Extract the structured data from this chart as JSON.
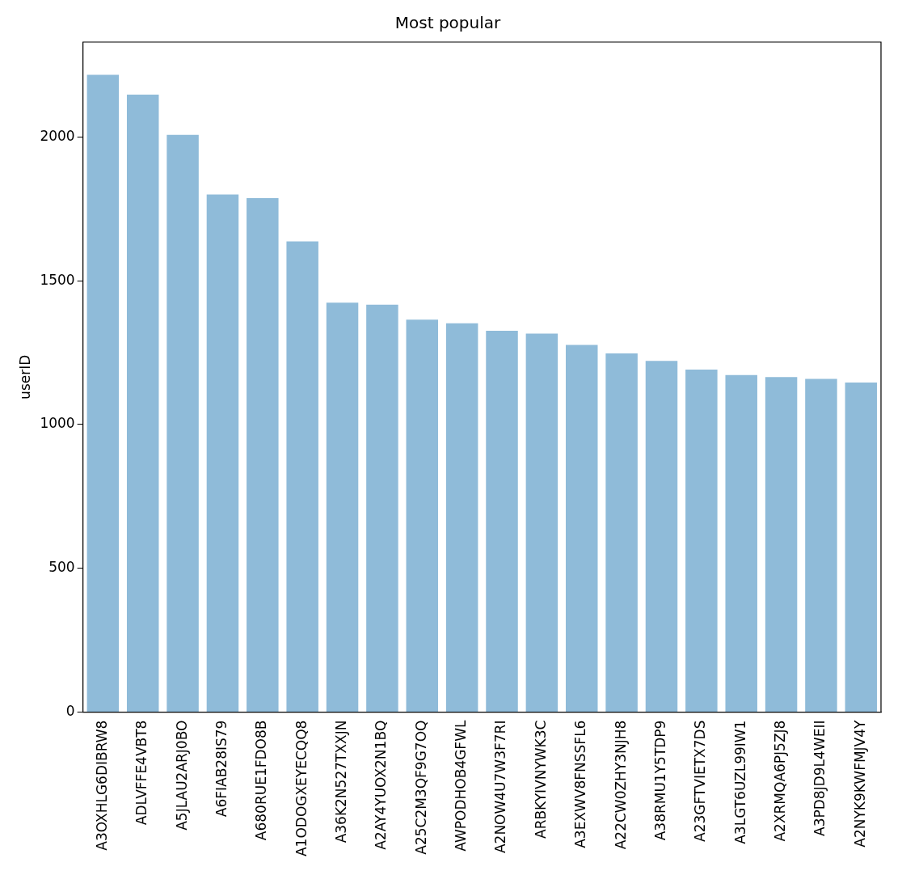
{
  "chart_data": {
    "type": "bar",
    "title": "Most popular",
    "ylabel": "userID",
    "categories": [
      "A3OXHLG6DIBRW8",
      "ADLVFFE4VBT8",
      "A5JLAU2ARJ0BO",
      "A6FIAB28IS79",
      "A680RUE1FDO8B",
      "A1ODOGXEYECQQ8",
      "A36K2N527TXXJN",
      "A2AY4YUOX2N1BQ",
      "A25C2M3QF9G7OQ",
      "AWPODHOB4GFWL",
      "A2NOW4U7W3F7RI",
      "ARBKYIVNYWK3C",
      "A3EXWV8FNSSFL6",
      "A22CW0ZHY3NJH8",
      "A38RMU1Y5TDP9",
      "A23GFTVIETX7DS",
      "A3LGT6UZL99IW1",
      "A2XRMQA6PJ5ZJ8",
      "A3PD8JD9L4WEII",
      "A2NYK9KWFMJV4Y"
    ],
    "values": [
      2216,
      2147,
      2007,
      1800,
      1787,
      1637,
      1424,
      1417,
      1365,
      1352,
      1326,
      1316,
      1277,
      1247,
      1221,
      1191,
      1172,
      1165,
      1159,
      1146
    ],
    "color": "#8fbbd9",
    "ylim": [
      0,
      2330
    ],
    "yticks": [
      0,
      500,
      1000,
      1500,
      2000
    ],
    "grid": false,
    "legend": false
  }
}
